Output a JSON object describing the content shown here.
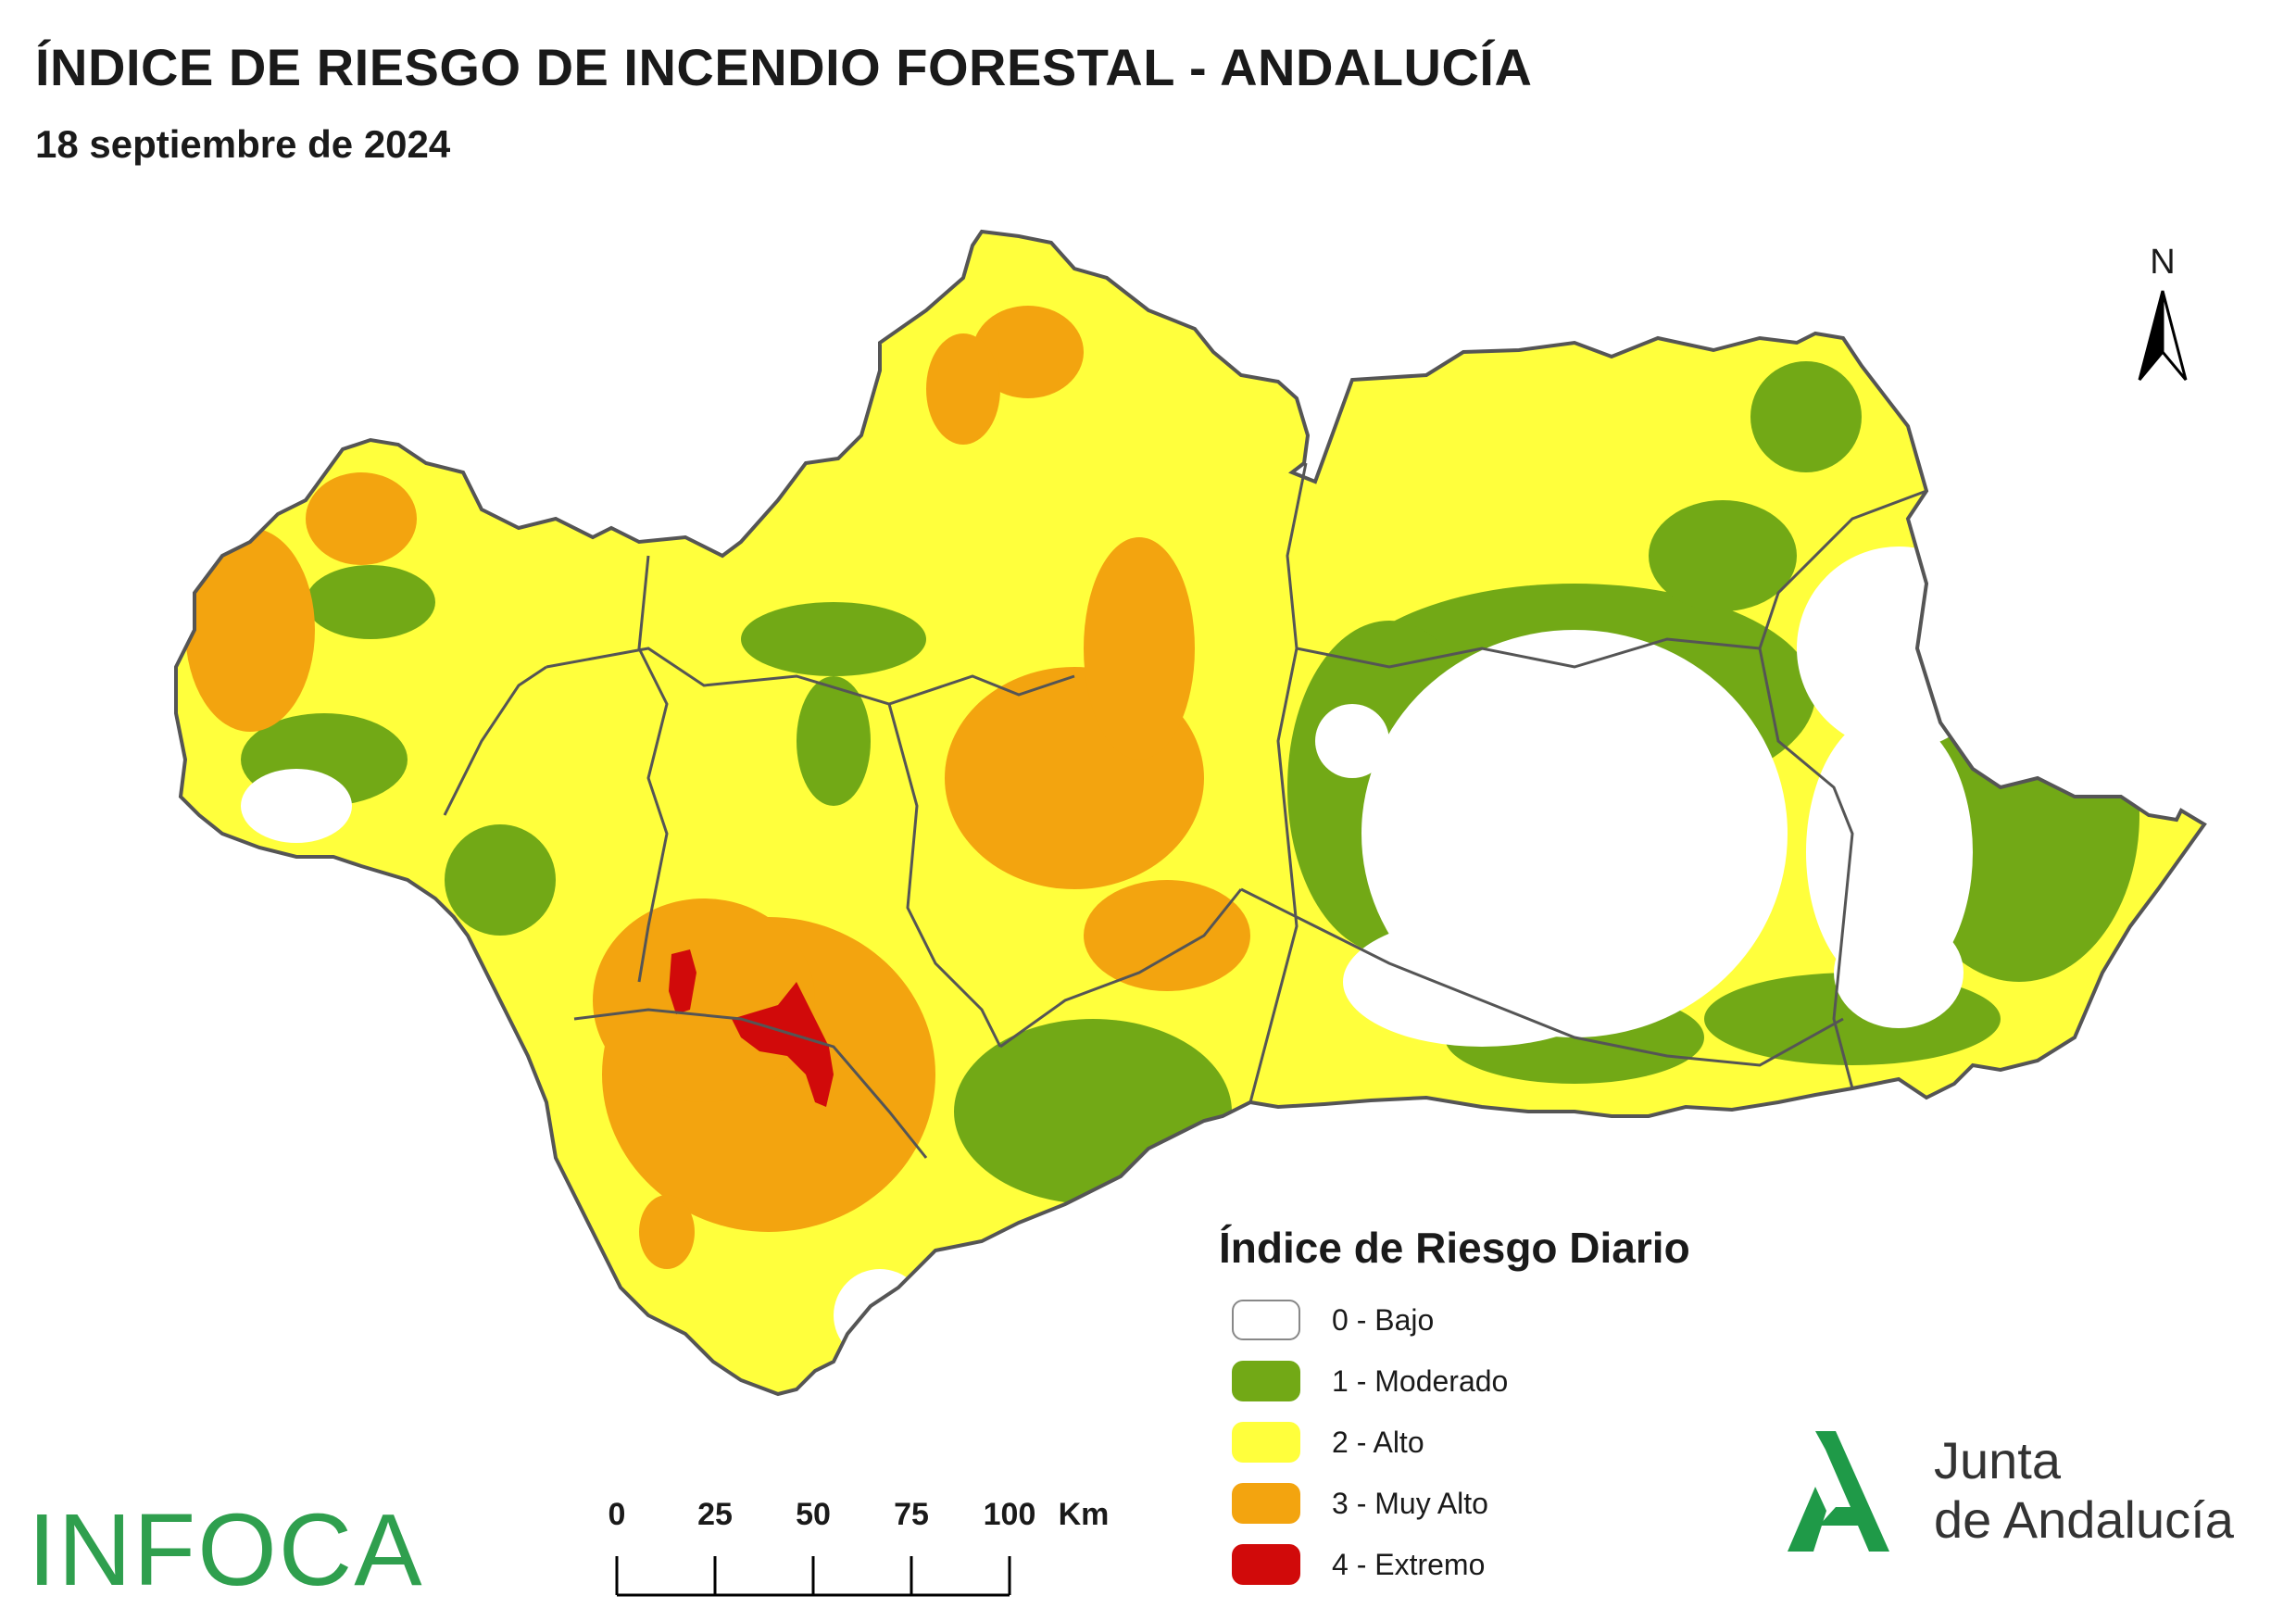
{
  "title": "ÍNDICE DE RIESGO DE INCENDIO FORESTAL - ANDALUCÍA",
  "date": "18 septiembre de 2024",
  "north_label": "N",
  "legend": {
    "title": "Índice de Riesgo Diario",
    "items": [
      {
        "label": "0 - Bajo",
        "color": "#ffffff"
      },
      {
        "label": "1 - Moderado",
        "color": "#72a916"
      },
      {
        "label": "2 - Alto",
        "color": "#ffff3c"
      },
      {
        "label": "3 - Muy Alto",
        "color": "#f3a40f"
      },
      {
        "label": "4 - Extremo",
        "color": "#d10a0a"
      }
    ]
  },
  "scale_bar": {
    "ticks": [
      "0",
      "25",
      "50",
      "75",
      "100"
    ],
    "unit": "Km"
  },
  "logos": {
    "infoca": "INFOCA",
    "junta_line1": "Junta",
    "junta_line2": "de Andalucía"
  },
  "colors": {
    "bajo": "#ffffff",
    "moderado": "#72a916",
    "alto": "#ffff3c",
    "muy_alto": "#f3a40f",
    "extremo": "#d10a0a",
    "border": "#555555",
    "infoca_green": "#2f9f4e",
    "junta_green": "#1f9a48"
  }
}
